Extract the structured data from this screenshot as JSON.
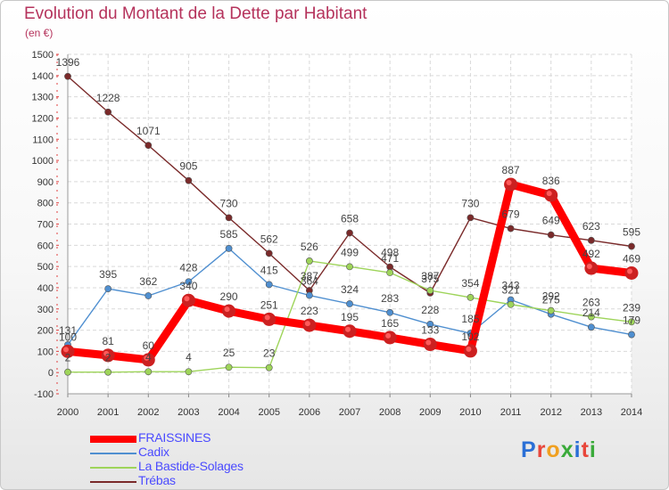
{
  "title": "Evolution du Montant de la Dette par Habitant",
  "unit_label": "(en €)",
  "logo": {
    "text": "Proxiti",
    "colors": [
      "#2a6fd6",
      "#e8463a",
      "#f0a020",
      "#3aaa3a",
      "#2a6fd6",
      "#e8463a",
      "#3aaa3a"
    ]
  },
  "chart_data": {
    "type": "line",
    "title": "Evolution du Montant de la Dette par Habitant",
    "ylabel": "(en €)",
    "xlabel": "",
    "x": [
      "2000",
      "2001",
      "2002",
      "2003",
      "2004",
      "2005",
      "2006",
      "2007",
      "2008",
      "2009",
      "2010",
      "2011",
      "2012",
      "2013",
      "2014"
    ],
    "ylim": [
      -100,
      1500
    ],
    "yticks": [
      -100,
      0,
      100,
      200,
      300,
      400,
      500,
      600,
      700,
      800,
      900,
      1000,
      1100,
      1200,
      1300,
      1400,
      1500
    ],
    "grid": true,
    "legend_position": "bottom-left",
    "series": [
      {
        "name": "FRAISSINES",
        "color": "#ff0000",
        "values": [
          100,
          81,
          60,
          340,
          290,
          251,
          223,
          195,
          165,
          133,
          102,
          887,
          836,
          492,
          469
        ]
      },
      {
        "name": "Cadix",
        "color": "#4f8fd0",
        "values": [
          131,
          395,
          362,
          428,
          585,
          415,
          364,
          324,
          283,
          228,
          185,
          343,
          275,
          214,
          179
        ]
      },
      {
        "name": "La Bastide-Solages",
        "color": "#9ed45a",
        "values": [
          2,
          2,
          4,
          4,
          25,
          23,
          526,
          499,
          471,
          387,
          354,
          321,
          292,
          263,
          239
        ]
      },
      {
        "name": "Trébas",
        "color": "#7a2a2a",
        "values": [
          1396,
          1228,
          1071,
          905,
          730,
          562,
          387,
          658,
          498,
          375,
          730,
          679,
          649,
          623,
          595
        ]
      }
    ]
  }
}
